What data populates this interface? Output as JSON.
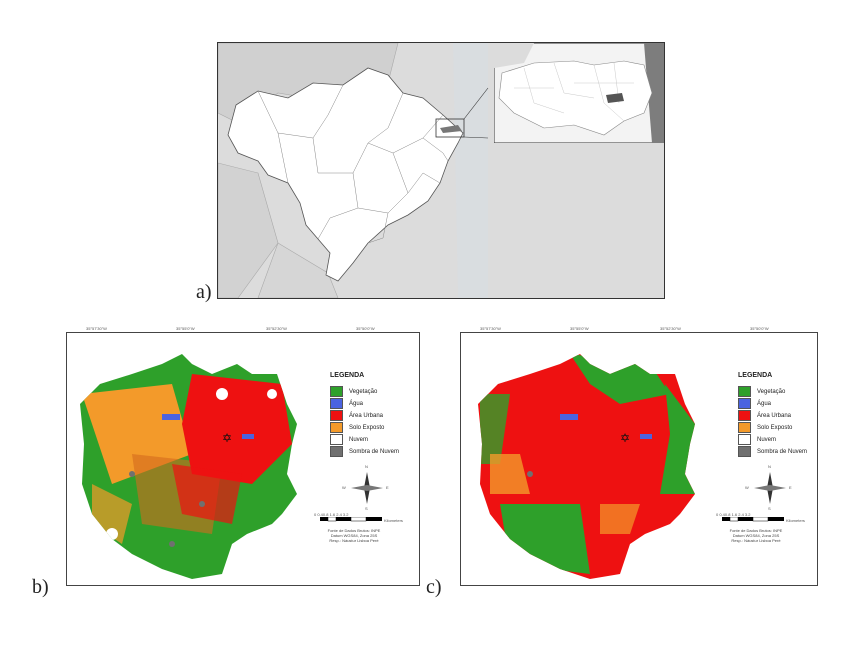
{
  "panel_labels": {
    "a": "a)",
    "b": "b)",
    "c": "c)"
  },
  "legend": {
    "title": "LEGENDA",
    "items": [
      {
        "label": "Vegetação",
        "color": "#2ea02a"
      },
      {
        "label": "Água",
        "color": "#4b63e0"
      },
      {
        "label": "Área Urbana",
        "color": "#ee1111"
      },
      {
        "label": "Solo Exposto",
        "color": "#f39a2a"
      },
      {
        "label": "Nuvem",
        "color": "#ffffff"
      },
      {
        "label": "Sombra de Nuvem",
        "color": "#707070"
      }
    ]
  },
  "scale_bar": {
    "ticks": "0 0.40.8   1.6   2.4   3.2",
    "unit": "Kilometers"
  },
  "compass": {
    "n": "N",
    "s": "S",
    "e": "E",
    "w": "W"
  },
  "credits_b": {
    "line1": "Fonte de Dados Brutos: INPE",
    "line2": "Datum WGS84, Zona 25S",
    "line3": "Resp.: Náustur Lisboa Peré"
  },
  "credits_c": {
    "line1": "Fonte de Dados Brutos: INPE",
    "line2": "Datum WGS84, Zona 25S",
    "line3": "Resp.: Náustur Lisboa Peré"
  },
  "coords": {
    "top": [
      "35°57'30\"W",
      "35°55'0\"W",
      "35°52'30\"W",
      "35°50'0\"W"
    ],
    "side": [
      "7°12'0\"S",
      "7°14'0\"S",
      "7°16'0\"S"
    ]
  }
}
